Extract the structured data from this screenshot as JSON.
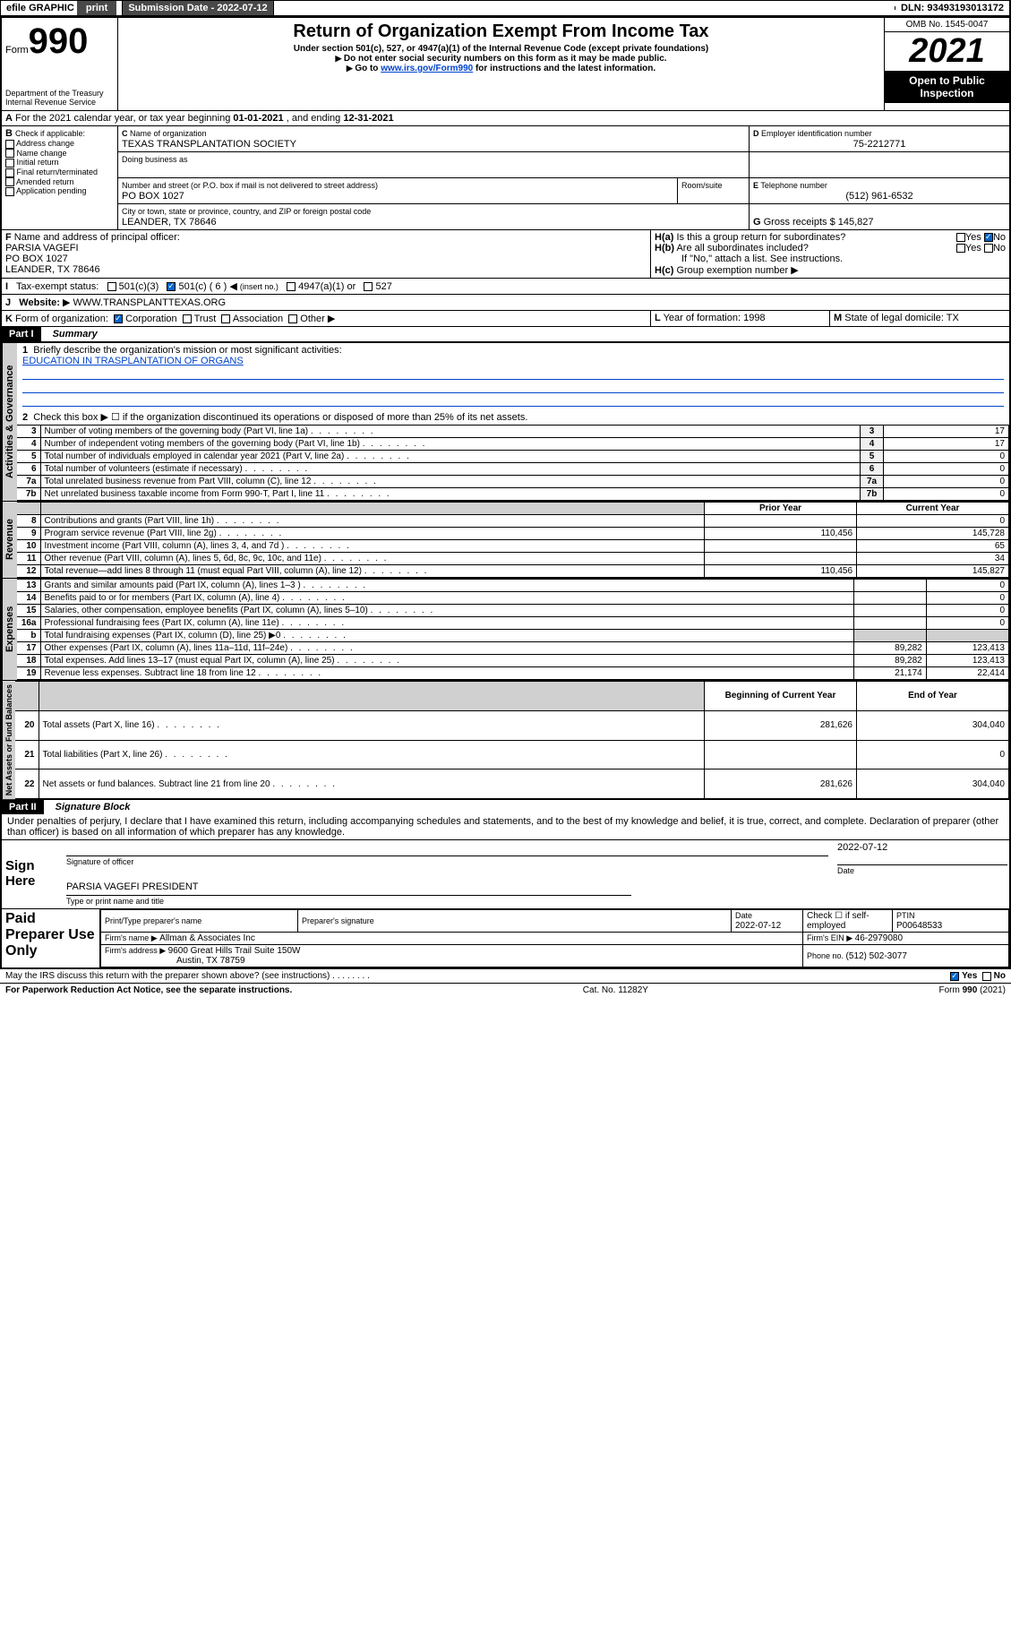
{
  "topbar": {
    "efile": "efile GRAPHIC",
    "print": "print",
    "subdate_label": "Submission Date - ",
    "subdate": "2022-07-12",
    "dln_label": "DLN: ",
    "dln": "93493193013172"
  },
  "header": {
    "form_word": "Form",
    "form_num": "990",
    "dept": "Department of the Treasury",
    "irs": "Internal Revenue Service",
    "title": "Return of Organization Exempt From Income Tax",
    "sub1": "Under section 501(c), 527, or 4947(a)(1) of the Internal Revenue Code (except private foundations)",
    "sub2": "Do not enter social security numbers on this form as it may be made public.",
    "sub3_pre": "Go to ",
    "sub3_link": "www.irs.gov/Form990",
    "sub3_post": " for instructions and the latest information.",
    "omb": "OMB No. 1545-0047",
    "year": "2021",
    "inspection": "Open to Public Inspection"
  },
  "A": {
    "text": "For the 2021 calendar year, or tax year beginning ",
    "begin": "01-01-2021",
    "mid": " , and ending ",
    "end": "12-31-2021"
  },
  "B": {
    "label": "Check if applicable:",
    "opts": [
      "Address change",
      "Name change",
      "Initial return",
      "Final return/terminated",
      "Amended return",
      "Application pending"
    ]
  },
  "C": {
    "name_label": "Name of organization",
    "name": "TEXAS TRANSPLANTATION SOCIETY",
    "dba_label": "Doing business as",
    "addr_label": "Number and street (or P.O. box if mail is not delivered to street address)",
    "room_label": "Room/suite",
    "addr": "PO BOX 1027",
    "city_label": "City or town, state or province, country, and ZIP or foreign postal code",
    "city": "LEANDER, TX  78646"
  },
  "D": {
    "label": "Employer identification number",
    "val": "75-2212771"
  },
  "E": {
    "label": "Telephone number",
    "val": "(512) 961-6532"
  },
  "G": {
    "label": "Gross receipts $ ",
    "val": "145,827"
  },
  "F": {
    "label": "Name and address of principal officer:",
    "l1": "PARSIA VAGEFI",
    "l2": "PO BOX 1027",
    "l3": "LEANDER, TX  78646"
  },
  "H": {
    "a": "Is this a group return for subordinates?",
    "b": "Are all subordinates included?",
    "note": "If \"No,\" attach a list. See instructions.",
    "c": "Group exemption number"
  },
  "I": {
    "label": "Tax-exempt status:",
    "o1": "501(c)(3)",
    "o2": "501(c) ( 6 )",
    "o2_hint": "(insert no.)",
    "o3": "4947(a)(1) or",
    "o4": "527"
  },
  "J": {
    "label": "Website:",
    "val": "WWW.TRANSPLANTTEXAS.ORG"
  },
  "K": {
    "label": "Form of organization:",
    "opts": [
      "Corporation",
      "Trust",
      "Association",
      "Other"
    ]
  },
  "L": {
    "label": "Year of formation: ",
    "val": "1998"
  },
  "M": {
    "label": "State of legal domicile: ",
    "val": "TX"
  },
  "part1": {
    "header": "Part I",
    "title": "Summary",
    "q1": "Briefly describe the organization's mission or most significant activities:",
    "q1_ans": "EDUCATION IN TRASPLANTATION OF ORGANS",
    "q2": "Check this box ▶ ☐ if the organization discontinued its operations or disposed of more than 25% of its net assets.",
    "tabs": {
      "gov": "Activities & Governance",
      "rev": "Revenue",
      "exp": "Expenses",
      "net": "Net Assets or Fund Balances"
    },
    "col_prior": "Prior Year",
    "col_current": "Current Year",
    "col_begin": "Beginning of Current Year",
    "col_end": "End of Year",
    "rows_gov": [
      {
        "n": "3",
        "t": "Number of voting members of the governing body (Part VI, line 1a)",
        "v": "17"
      },
      {
        "n": "4",
        "t": "Number of independent voting members of the governing body (Part VI, line 1b)",
        "v": "17"
      },
      {
        "n": "5",
        "t": "Total number of individuals employed in calendar year 2021 (Part V, line 2a)",
        "v": "0"
      },
      {
        "n": "6",
        "t": "Total number of volunteers (estimate if necessary)",
        "v": "0"
      },
      {
        "n": "7a",
        "t": "Total unrelated business revenue from Part VIII, column (C), line 12",
        "v": "0"
      },
      {
        "n": "7b",
        "t": "Net unrelated business taxable income from Form 990-T, Part I, line 11",
        "v": "0"
      }
    ],
    "rows_rev": [
      {
        "n": "8",
        "t": "Contributions and grants (Part VIII, line 1h)",
        "p": "",
        "c": "0"
      },
      {
        "n": "9",
        "t": "Program service revenue (Part VIII, line 2g)",
        "p": "110,456",
        "c": "145,728"
      },
      {
        "n": "10",
        "t": "Investment income (Part VIII, column (A), lines 3, 4, and 7d )",
        "p": "",
        "c": "65"
      },
      {
        "n": "11",
        "t": "Other revenue (Part VIII, column (A), lines 5, 6d, 8c, 9c, 10c, and 11e)",
        "p": "",
        "c": "34"
      },
      {
        "n": "12",
        "t": "Total revenue—add lines 8 through 11 (must equal Part VIII, column (A), line 12)",
        "p": "110,456",
        "c": "145,827"
      }
    ],
    "rows_exp": [
      {
        "n": "13",
        "t": "Grants and similar amounts paid (Part IX, column (A), lines 1–3 )",
        "p": "",
        "c": "0"
      },
      {
        "n": "14",
        "t": "Benefits paid to or for members (Part IX, column (A), line 4)",
        "p": "",
        "c": "0"
      },
      {
        "n": "15",
        "t": "Salaries, other compensation, employee benefits (Part IX, column (A), lines 5–10)",
        "p": "",
        "c": "0"
      },
      {
        "n": "16a",
        "t": "Professional fundraising fees (Part IX, column (A), line 11e)",
        "p": "",
        "c": "0"
      },
      {
        "n": "b",
        "t": "Total fundraising expenses (Part IX, column (D), line 25) ▶0",
        "p": "shaded",
        "c": "shaded"
      },
      {
        "n": "17",
        "t": "Other expenses (Part IX, column (A), lines 11a–11d, 11f–24e)",
        "p": "89,282",
        "c": "123,413"
      },
      {
        "n": "18",
        "t": "Total expenses. Add lines 13–17 (must equal Part IX, column (A), line 25)",
        "p": "89,282",
        "c": "123,413"
      },
      {
        "n": "19",
        "t": "Revenue less expenses. Subtract line 18 from line 12",
        "p": "21,174",
        "c": "22,414"
      }
    ],
    "rows_net": [
      {
        "n": "20",
        "t": "Total assets (Part X, line 16)",
        "p": "281,626",
        "c": "304,040"
      },
      {
        "n": "21",
        "t": "Total liabilities (Part X, line 26)",
        "p": "",
        "c": "0"
      },
      {
        "n": "22",
        "t": "Net assets or fund balances. Subtract line 21 from line 20",
        "p": "281,626",
        "c": "304,040"
      }
    ]
  },
  "part2": {
    "header": "Part II",
    "title": "Signature Block",
    "decl": "Under penalties of perjury, I declare that I have examined this return, including accompanying schedules and statements, and to the best of my knowledge and belief, it is true, correct, and complete. Declaration of preparer (other than officer) is based on all information of which preparer has any knowledge.",
    "sign_here": "Sign Here",
    "sig_officer": "Signature of officer",
    "date": "Date",
    "sig_date": "2022-07-12",
    "name_title": "PARSIA VAGEFI PRESIDENT",
    "name_label": "Type or print name and title",
    "paid": "Paid Preparer Use Only",
    "prep_name_label": "Print/Type preparer's name",
    "prep_sig_label": "Preparer's signature",
    "prep_date_label": "Date",
    "prep_date": "2022-07-12",
    "check_label": "Check ☐ if self-employed",
    "ptin_label": "PTIN",
    "ptin": "P00648533",
    "firm_name_label": "Firm's name   ▶ ",
    "firm_name": "Allman & Associates Inc",
    "firm_ein_label": "Firm's EIN ▶ ",
    "firm_ein": "46-2979080",
    "firm_addr_label": "Firm's address ▶ ",
    "firm_addr1": "9600 Great Hills Trail Suite 150W",
    "firm_addr2": "Austin, TX  78759",
    "phone_label": "Phone no. ",
    "phone": "(512) 502-3077",
    "discuss": "May the IRS discuss this return with the preparer shown above? (see instructions)",
    "yes": "Yes",
    "no": "No"
  },
  "footer": {
    "left": "For Paperwork Reduction Act Notice, see the separate instructions.",
    "mid": "Cat. No. 11282Y",
    "right": "Form 990 (2021)"
  }
}
